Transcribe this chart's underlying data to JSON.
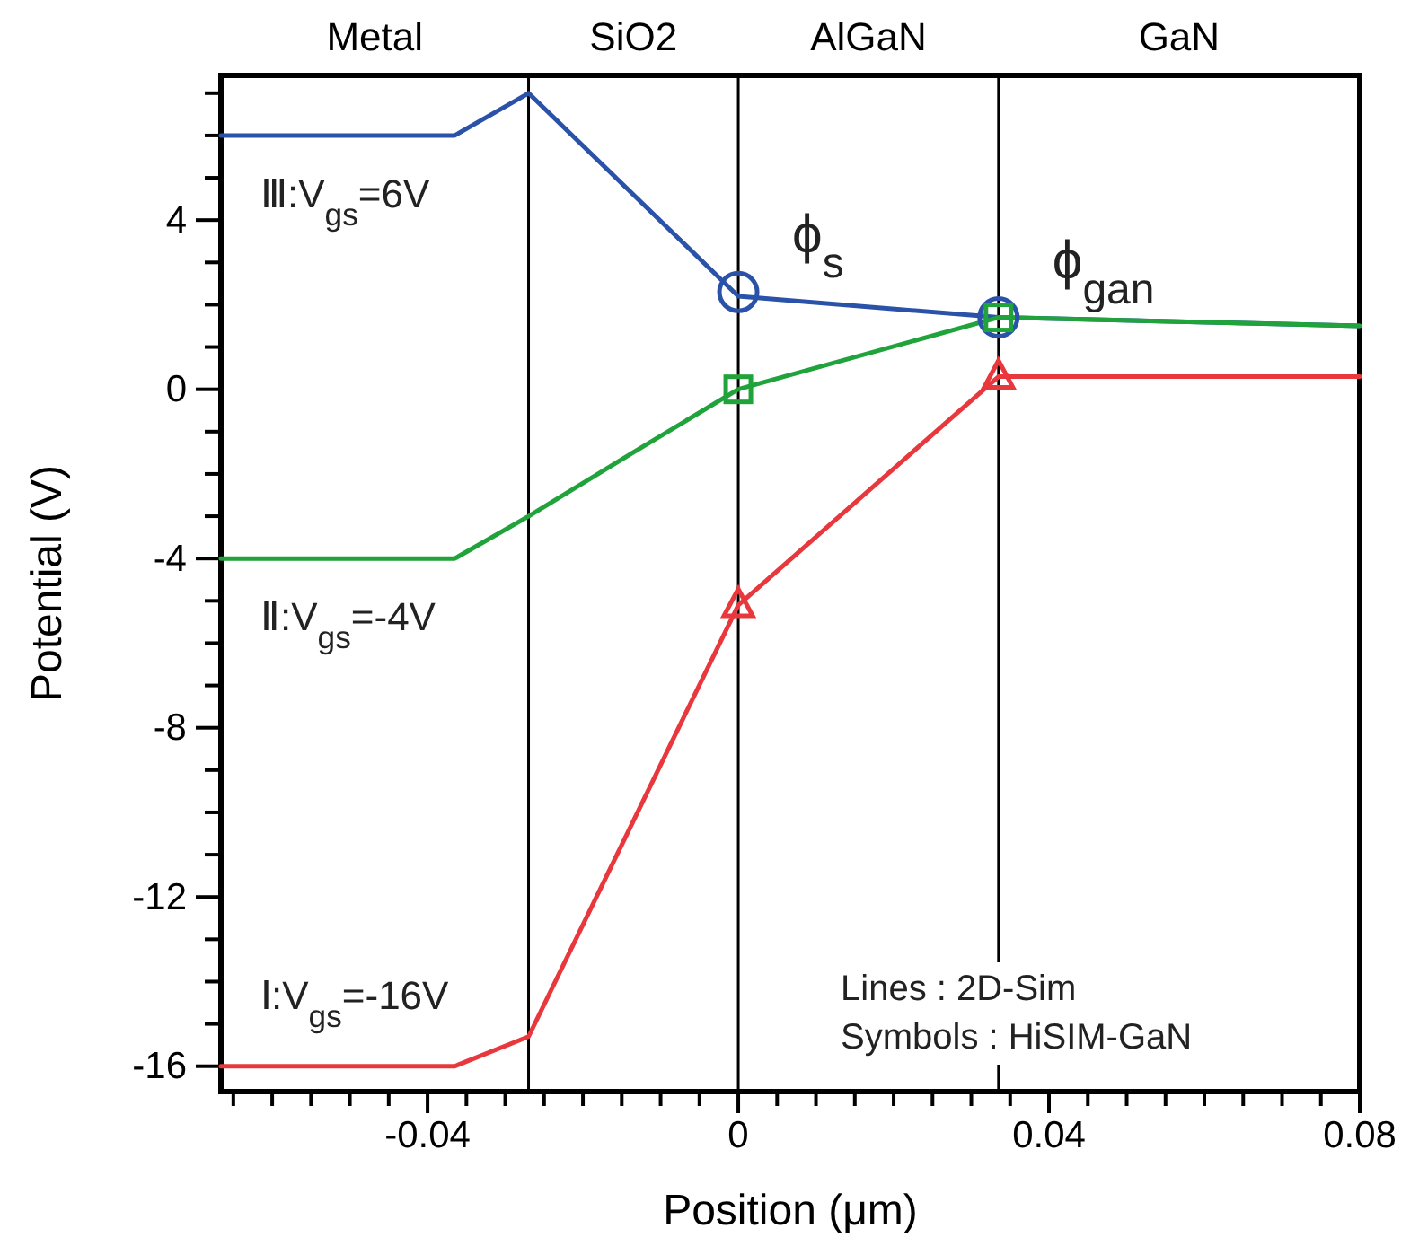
{
  "chart_data": {
    "type": "line",
    "xlabel": "Position (μm)",
    "ylabel": "Potential (V)",
    "xlim": [
      -0.0666,
      0.08
    ],
    "ylim": [
      -16.6,
      7.42
    ],
    "xticks": [
      {
        "value": -0.065,
        "label": null
      },
      {
        "value": -0.06,
        "label": null
      },
      {
        "value": -0.055,
        "label": null
      },
      {
        "value": -0.05,
        "label": null
      },
      {
        "value": -0.045,
        "label": null
      },
      -0.04,
      {
        "value": -0.035,
        "label": null
      },
      {
        "value": -0.03,
        "label": null
      },
      {
        "value": -0.025,
        "label": null
      },
      {
        "value": -0.02,
        "label": null
      },
      {
        "value": -0.015,
        "label": null
      },
      {
        "value": -0.01,
        "label": null
      },
      {
        "value": -0.005,
        "label": null
      },
      0,
      {
        "value": 0.005,
        "label": null
      },
      {
        "value": 0.01,
        "label": null
      },
      {
        "value": 0.015,
        "label": null
      },
      {
        "value": 0.02,
        "label": null
      },
      {
        "value": 0.025,
        "label": null
      },
      {
        "value": 0.03,
        "label": null
      },
      {
        "value": 0.035,
        "label": null
      },
      0.04,
      {
        "value": 0.045,
        "label": null
      },
      {
        "value": 0.05,
        "label": null
      },
      {
        "value": 0.055,
        "label": null
      },
      {
        "value": 0.06,
        "label": null
      },
      {
        "value": 0.065,
        "label": null
      },
      {
        "value": 0.07,
        "label": null
      },
      {
        "value": 0.075,
        "label": null
      },
      0.08
    ],
    "yticks": [
      -16,
      {
        "value": -15,
        "label": null
      },
      {
        "value": -14,
        "label": null
      },
      {
        "value": -13,
        "label": null
      },
      -12,
      {
        "value": -11,
        "label": null
      },
      {
        "value": -10,
        "label": null
      },
      {
        "value": -9,
        "label": null
      },
      -8,
      {
        "value": -7,
        "label": null
      },
      {
        "value": -6,
        "label": null
      },
      {
        "value": -5,
        "label": null
      },
      -4,
      {
        "value": -3,
        "label": null
      },
      {
        "value": -2,
        "label": null
      },
      {
        "value": -1,
        "label": null
      },
      0,
      {
        "value": 1,
        "label": null
      },
      {
        "value": 2,
        "label": null
      },
      {
        "value": 3,
        "label": null
      },
      4,
      {
        "value": 5,
        "label": null
      },
      {
        "value": 6,
        "label": null
      },
      {
        "value": 7,
        "label": null
      }
    ],
    "grid": false,
    "legend": false,
    "line_style": "solid",
    "series": [
      {
        "name": "Ⅲ:V$_{gs}$=6V",
        "color": "#2a52a8",
        "marker": "none",
        "x": [
          -0.0666,
          -0.0365,
          -0.027,
          0,
          0.0335,
          0.08
        ],
        "values": [
          6,
          6,
          7.0,
          2.2,
          1.7,
          1.5
        ]
      },
      {
        "name": "Ⅱ:V$_{gs}$=-4V",
        "color": "#1fa33a",
        "marker": "none",
        "x": [
          -0.0666,
          -0.0365,
          -0.027,
          -0.0136,
          0,
          0.0335,
          0.08
        ],
        "values": [
          -4,
          -4,
          -3.0,
          -1.5,
          0,
          1.7,
          1.5
        ]
      },
      {
        "name": "Ⅰ:V$_{gs}$=-16V",
        "color": "#e8383d",
        "marker": "none",
        "x": [
          -0.0666,
          -0.0365,
          -0.027,
          0,
          0.0335,
          0.08
        ],
        "values": [
          -16,
          -16,
          -15.3,
          -5.1,
          0.3,
          0.3
        ]
      },
      {
        "type": "scatter",
        "color": "#2a52a8",
        "marker": "circle",
        "x": [
          0,
          0.0335
        ],
        "values": [
          2.3,
          1.7
        ]
      },
      {
        "type": "scatter",
        "color": "#1fa33a",
        "marker": "square",
        "x": [
          0,
          0.0335
        ],
        "values": [
          0,
          1.7
        ]
      },
      {
        "type": "scatter",
        "color": "#e8383d",
        "marker": "triangle",
        "x": [
          0,
          0.0335
        ],
        "values": [
          -5.1,
          0.3
        ]
      }
    ],
    "ref_lines": [
      {
        "axis": "x",
        "value": -0.027
      },
      {
        "axis": "x",
        "value": 0
      },
      {
        "axis": "x",
        "value": 0.0335
      }
    ],
    "annotations": [
      "Metal",
      "SiO2",
      "AlGaN",
      "GaN",
      {
        "text": "ϕ$_{s}$",
        "x": 0,
        "y": 2.3
      },
      {
        "text": "ϕ$_{gan}$",
        "x": 0.0335,
        "y": 1.7
      },
      "Lines : 2D-Sim",
      "Symbols : HiSIM-GaN"
    ]
  }
}
